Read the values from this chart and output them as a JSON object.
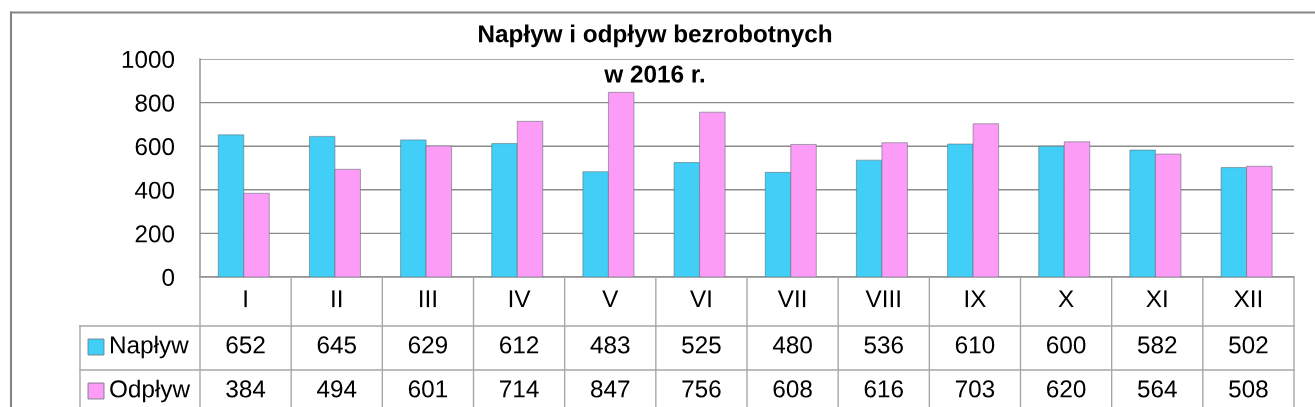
{
  "chart_data": {
    "type": "bar",
    "title": "Napływ i odpływ bezrobotnych\nw 2016 r.",
    "categories": [
      "I",
      "II",
      "III",
      "IV",
      "V",
      "VI",
      "VII",
      "VIII",
      "IX",
      "X",
      "XI",
      "XII"
    ],
    "series": [
      {
        "name": "Napływ",
        "color": "#41cff8",
        "values": [
          652,
          645,
          629,
          612,
          483,
          525,
          480,
          536,
          610,
          600,
          582,
          502
        ]
      },
      {
        "name": "Odpływ",
        "color": "#fc9cf7",
        "values": [
          384,
          494,
          601,
          714,
          847,
          756,
          608,
          616,
          703,
          620,
          564,
          508
        ]
      }
    ],
    "ylim": [
      0,
      1000
    ],
    "yticks": [
      0,
      200,
      400,
      600,
      800,
      1000
    ],
    "grid": "y",
    "legend": "bottom left",
    "data_labels": true
  }
}
